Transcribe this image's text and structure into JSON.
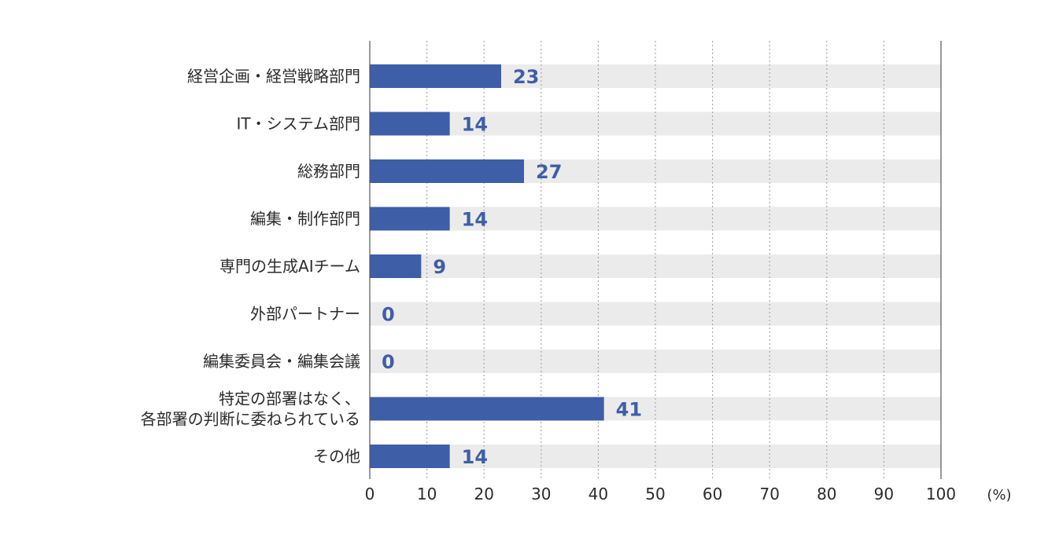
{
  "chart_data": {
    "type": "bar",
    "orientation": "horizontal",
    "categories": [
      [
        "経営企画・経営戦略部門"
      ],
      [
        "IT・システム部門"
      ],
      [
        "総務部門"
      ],
      [
        "編集・制作部門"
      ],
      [
        "専門の生成AIチーム"
      ],
      [
        "外部パートナー"
      ],
      [
        "編集委員会・編集会議"
      ],
      [
        "特定の部署はなく、",
        "各部署の判断に委ねられている"
      ],
      [
        "その他"
      ]
    ],
    "values": [
      23,
      14,
      27,
      14,
      9,
      0,
      0,
      41,
      14
    ],
    "xlim": [
      0,
      100
    ],
    "xticks": [
      0,
      10,
      20,
      30,
      40,
      50,
      60,
      70,
      80,
      90,
      100
    ],
    "unit": "(%)",
    "grid": "vertical-dotted",
    "bar_color": "#3f5ea8",
    "track_color": "#ebebeb",
    "value_label_color": "#3f5ea8"
  }
}
